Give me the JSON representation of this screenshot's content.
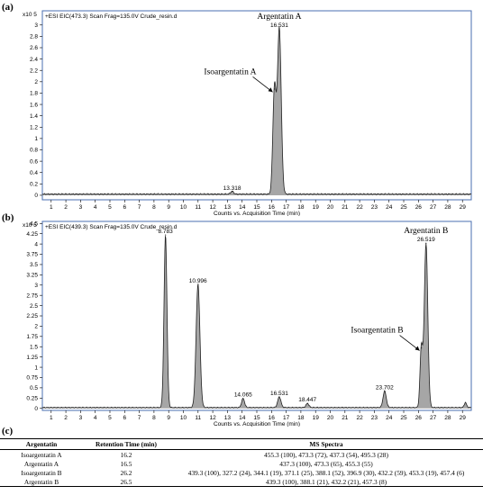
{
  "chart_data": [
    {
      "type": "line",
      "panel_label": "(a)",
      "header": "+ESI EIC(473.3) Scan Frag=135.0V Crude_resin.d",
      "y_multiplier": "x10 5",
      "xlabel": "Counts vs. Acquisition Time (min)",
      "xlim": [
        0.4,
        29.6
      ],
      "ylim": [
        -0.08,
        3.25
      ],
      "xticks": [
        1,
        2,
        3,
        4,
        5,
        6,
        7,
        8,
        9,
        10,
        11,
        12,
        13,
        14,
        15,
        16,
        17,
        18,
        19,
        20,
        21,
        22,
        23,
        24,
        25,
        26,
        27,
        28,
        29
      ],
      "yticks": [
        0,
        0.2,
        0.4,
        0.6,
        0.8,
        1,
        1.2,
        1.4,
        1.6,
        1.8,
        2,
        2.2,
        2.4,
        2.6,
        2.8,
        3
      ],
      "ytick_labels": [
        "0",
        "0.2",
        "0.4",
        "0.6",
        "0.8",
        "1",
        "1.2",
        "1.4",
        "1.6",
        "1.8",
        "2",
        "2.2",
        "2.4",
        "2.6",
        "2.8",
        "3"
      ],
      "baseline": 0.02,
      "peaks": [
        {
          "rt": 13.318,
          "height": 0.05,
          "width": 0.1
        },
        {
          "rt": 16.2,
          "height": 1.85,
          "width": 0.11
        },
        {
          "rt": 16.531,
          "height": 2.92,
          "width": 0.13
        }
      ],
      "peak_labels": [
        {
          "text": "13.318",
          "x": 13.318,
          "y": 0.05
        },
        {
          "text": "16.531",
          "x": 16.531,
          "y": 2.92
        }
      ],
      "annotations": [
        {
          "text": "Argentatin A",
          "x": 16.531,
          "y": 2.92,
          "arrow": false
        },
        {
          "text": "Isoargentatin A",
          "x": 16.2,
          "y": 1.85,
          "arrow": true
        }
      ]
    },
    {
      "type": "line",
      "panel_label": "(b)",
      "header": "+ESI EIC(439.3) Scan Frag=135.0V Crude_resin.d",
      "y_multiplier": "x10 5",
      "xlabel": "Counts vs. Acquisition Time (min)",
      "xlim": [
        0.4,
        29.6
      ],
      "ylim": [
        -0.05,
        4.55
      ],
      "xticks": [
        1,
        2,
        3,
        4,
        5,
        6,
        7,
        8,
        9,
        10,
        11,
        12,
        13,
        14,
        15,
        16,
        17,
        18,
        19,
        20,
        21,
        22,
        23,
        24,
        25,
        26,
        27,
        28,
        29
      ],
      "yticks": [
        0,
        0.25,
        0.5,
        0.75,
        1,
        1.25,
        1.5,
        1.75,
        2,
        2.25,
        2.5,
        2.75,
        3,
        3.25,
        3.5,
        3.75,
        4,
        4.25,
        4.5
      ],
      "ytick_labels": [
        "0",
        "0.25",
        "0.5",
        "0.75",
        "1",
        "1.25",
        "1.5",
        "1.75",
        "2",
        "2.25",
        "2.5",
        "2.75",
        "3",
        "3.25",
        "3.5",
        "3.75",
        "4",
        "4.25",
        "4.5"
      ],
      "baseline": 0.02,
      "peaks": [
        {
          "rt": 8.783,
          "height": 4.2,
          "width": 0.1
        },
        {
          "rt": 10.996,
          "height": 3.0,
          "width": 0.13
        },
        {
          "rt": 14.065,
          "height": 0.22,
          "width": 0.1
        },
        {
          "rt": 16.531,
          "height": 0.26,
          "width": 0.11
        },
        {
          "rt": 18.447,
          "height": 0.1,
          "width": 0.1
        },
        {
          "rt": 23.702,
          "height": 0.4,
          "width": 0.11
        },
        {
          "rt": 26.2,
          "height": 1.45,
          "width": 0.09
        },
        {
          "rt": 26.519,
          "height": 4.0,
          "width": 0.12
        },
        {
          "rt": 29.2,
          "height": 0.12,
          "width": 0.08
        }
      ],
      "peak_labels": [
        {
          "text": "8.783",
          "x": 8.783,
          "y": 4.2
        },
        {
          "text": "10.996",
          "x": 10.996,
          "y": 3.0
        },
        {
          "text": "14.065",
          "x": 14.065,
          "y": 0.22
        },
        {
          "text": "16.531",
          "x": 16.531,
          "y": 0.26
        },
        {
          "text": "18.447",
          "x": 18.447,
          "y": 0.1
        },
        {
          "text": "23.702",
          "x": 23.702,
          "y": 0.4
        },
        {
          "text": "26.519",
          "x": 26.519,
          "y": 4.0
        }
      ],
      "annotations": [
        {
          "text": "Argentatin B",
          "x": 26.519,
          "y": 4.0,
          "arrow": false
        },
        {
          "text": "Isoargentatin B",
          "x": 26.2,
          "y": 1.45,
          "arrow": true
        }
      ]
    }
  ],
  "table": {
    "panel_label": "(c)",
    "headers": [
      "Argentatin",
      "Retention Time (min)",
      "MS Spectra"
    ],
    "rows": [
      [
        "Isoargentatin A",
        "16.2",
        "455.3 (100), 473.3 (72), 437.3 (54), 495.3 (28)"
      ],
      [
        "Argentatin A",
        "16.5",
        "437.3 (100), 473.3 (65), 455.3 (55)"
      ],
      [
        "Isoargentatin B",
        "26.2",
        "439.3 (100), 327.2 (24), 344.1 (19), 371.1 (25), 388.1 (52), 396.9 (30), 432.2 (59), 453.3 (19), 457.4 (6)"
      ],
      [
        "Argentatin B",
        "26.5",
        "439.3 (100), 388.1 (21), 432.2 (21), 457.3 (8)"
      ]
    ]
  },
  "colors": {
    "frame": "#4a6fb0",
    "trace": "#222222",
    "fill": "#a6a6a6"
  }
}
